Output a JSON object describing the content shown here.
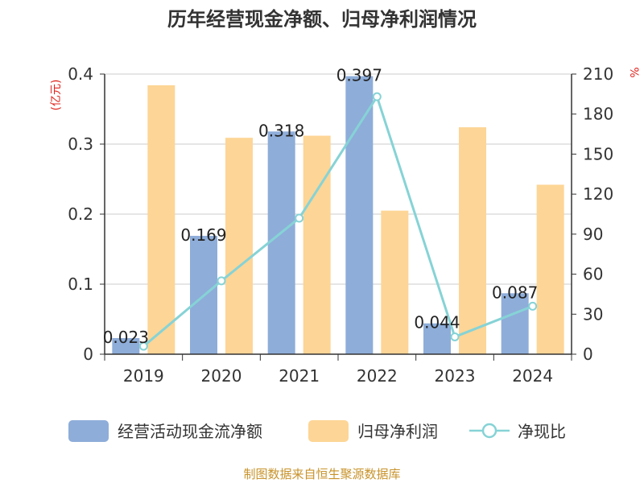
{
  "chart_data": {
    "type": "bar",
    "title": "历年经营现金净额、归母净利润情况",
    "categories": [
      "2019",
      "2020",
      "2021",
      "2022",
      "2023",
      "2024"
    ],
    "series": [
      {
        "name": "经营活动现金流净额",
        "kind": "bar",
        "axis": "left",
        "color": "#8eadd9",
        "values": [
          0.023,
          0.169,
          0.318,
          0.397,
          0.044,
          0.087
        ],
        "labels": [
          "0.023",
          "0.169",
          "0.318",
          "0.397",
          "0.044",
          "0.087"
        ]
      },
      {
        "name": "归母净利润",
        "kind": "bar",
        "axis": "left",
        "color": "#fdd596",
        "values": [
          0.384,
          0.309,
          0.312,
          0.205,
          0.324,
          0.242
        ]
      },
      {
        "name": "净现比",
        "kind": "line",
        "axis": "right",
        "color": "#86d3d6",
        "values": [
          6,
          55,
          102,
          193,
          13,
          36
        ]
      }
    ],
    "y_left": {
      "unit": "(亿元)",
      "ylim": [
        0,
        0.4
      ],
      "ticks": [
        "0",
        "0.1",
        "0.2",
        "0.3",
        "0.4"
      ]
    },
    "y_right": {
      "unit": "%",
      "ylim": [
        0,
        210
      ],
      "ticks": [
        "0",
        "30",
        "60",
        "90",
        "120",
        "150",
        "180",
        "210"
      ]
    },
    "grid": true,
    "legend": "bottom",
    "source": "制图数据来自恒生聚源数据库"
  }
}
